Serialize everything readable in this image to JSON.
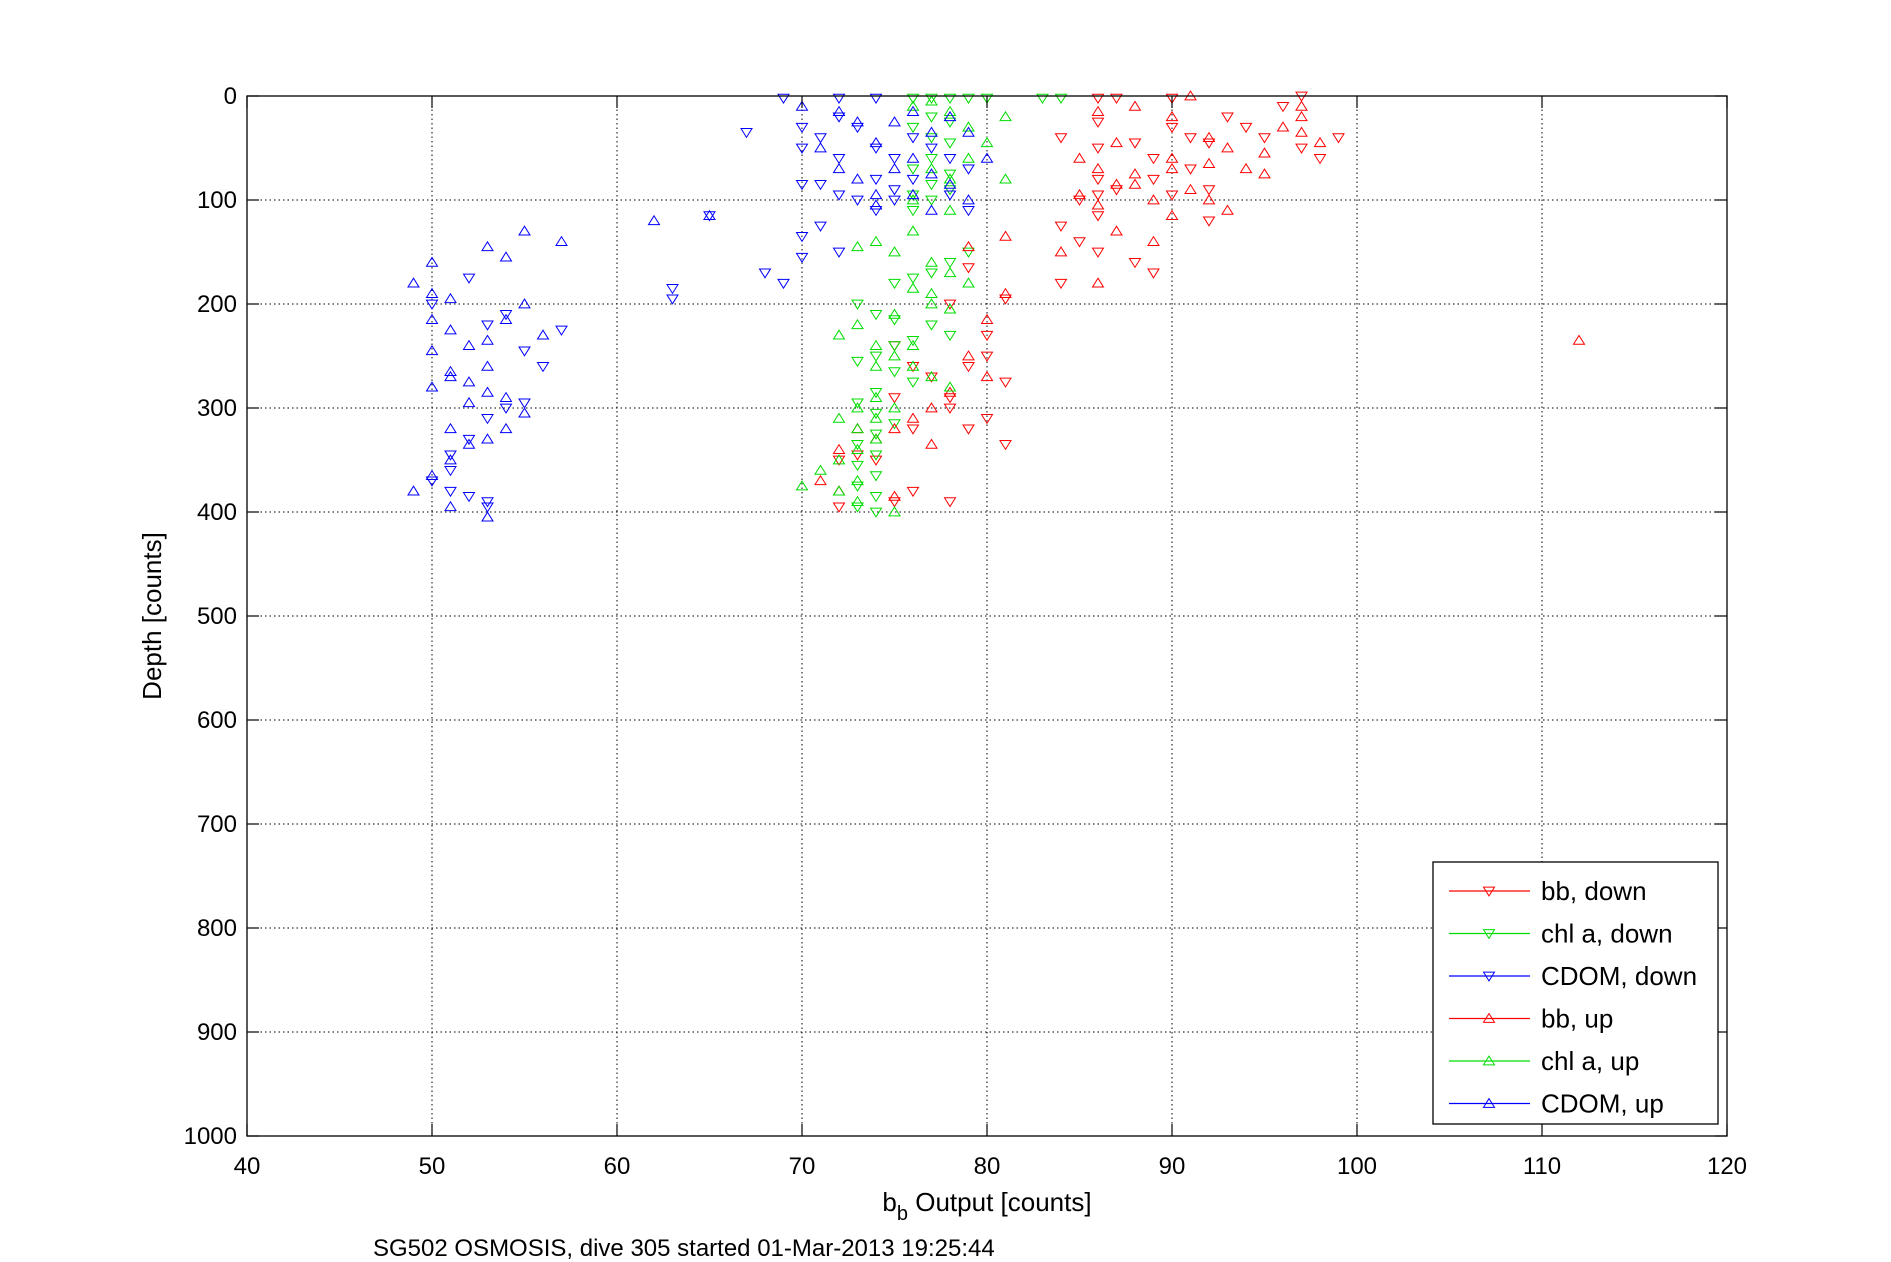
{
  "chart_data": {
    "type": "scatter",
    "title": "",
    "xlabel": {
      "main": "b",
      "sub": "b",
      "rest": " Output [counts]"
    },
    "ylabel": "Depth [counts]",
    "caption": "SG502 OSMOSIS, dive 305 started 01-Mar-2013 19:25:44",
    "xlim": [
      40,
      120
    ],
    "ylim": [
      0,
      1000
    ],
    "y_reversed": true,
    "grid": true,
    "legend_position": "bottom-right",
    "x_ticks": [
      "40",
      "50",
      "60",
      "70",
      "80",
      "90",
      "100",
      "110",
      "120"
    ],
    "y_ticks": [
      "0",
      "100",
      "200",
      "300",
      "400",
      "500",
      "600",
      "700",
      "800",
      "900",
      "1000"
    ],
    "series": [
      {
        "name": "bb, down",
        "color": "#ff0000",
        "marker": "triangle-down",
        "points": [
          [
            86,
            2
          ],
          [
            87,
            2
          ],
          [
            90,
            2
          ],
          [
            97,
            0
          ],
          [
            84,
            40
          ],
          [
            86,
            25
          ],
          [
            86,
            50
          ],
          [
            88,
            45
          ],
          [
            89,
            60
          ],
          [
            90,
            30
          ],
          [
            91,
            40
          ],
          [
            92,
            45
          ],
          [
            93,
            20
          ],
          [
            94,
            30
          ],
          [
            95,
            40
          ],
          [
            96,
            10
          ],
          [
            97,
            50
          ],
          [
            98,
            60
          ],
          [
            99,
            40
          ],
          [
            86,
            80
          ],
          [
            86,
            95
          ],
          [
            85,
            100
          ],
          [
            87,
            90
          ],
          [
            89,
            80
          ],
          [
            90,
            95
          ],
          [
            91,
            70
          ],
          [
            92,
            90
          ],
          [
            86,
            115
          ],
          [
            84,
            125
          ],
          [
            85,
            140
          ],
          [
            86,
            150
          ],
          [
            88,
            160
          ],
          [
            89,
            170
          ],
          [
            84,
            180
          ],
          [
            92,
            120
          ],
          [
            81,
            195
          ],
          [
            80,
            250
          ],
          [
            79,
            260
          ],
          [
            81,
            275
          ],
          [
            80,
            230
          ],
          [
            78,
            200
          ],
          [
            79,
            165
          ],
          [
            78,
            290
          ],
          [
            76,
            260
          ],
          [
            77,
            270
          ],
          [
            78,
            300
          ],
          [
            75,
            290
          ],
          [
            76,
            320
          ],
          [
            79,
            320
          ],
          [
            80,
            310
          ],
          [
            81,
            335
          ],
          [
            74,
            350
          ],
          [
            73,
            345
          ],
          [
            72,
            350
          ],
          [
            75,
            390
          ],
          [
            78,
            390
          ],
          [
            72,
            395
          ],
          [
            76,
            380
          ],
          [
            75,
            240
          ]
        ]
      },
      {
        "name": "chl a, down",
        "color": "#00dd00",
        "marker": "triangle-down",
        "points": [
          [
            76,
            2
          ],
          [
            77,
            2
          ],
          [
            78,
            2
          ],
          [
            79,
            2
          ],
          [
            80,
            2
          ],
          [
            83,
            2
          ],
          [
            84,
            2
          ],
          [
            77,
            20
          ],
          [
            78,
            25
          ],
          [
            76,
            30
          ],
          [
            77,
            40
          ],
          [
            78,
            45
          ],
          [
            77,
            60
          ],
          [
            76,
            70
          ],
          [
            78,
            75
          ],
          [
            77,
            85
          ],
          [
            76,
            95
          ],
          [
            78,
            90
          ],
          [
            77,
            100
          ],
          [
            76,
            110
          ],
          [
            79,
            150
          ],
          [
            78,
            160
          ],
          [
            77,
            170
          ],
          [
            76,
            175
          ],
          [
            75,
            180
          ],
          [
            73,
            200
          ],
          [
            74,
            210
          ],
          [
            75,
            215
          ],
          [
            77,
            220
          ],
          [
            78,
            230
          ],
          [
            76,
            235
          ],
          [
            75,
            240
          ],
          [
            74,
            250
          ],
          [
            73,
            255
          ],
          [
            75,
            265
          ],
          [
            76,
            275
          ],
          [
            74,
            285
          ],
          [
            73,
            295
          ],
          [
            74,
            305
          ],
          [
            75,
            315
          ],
          [
            74,
            325
          ],
          [
            73,
            335
          ],
          [
            74,
            345
          ],
          [
            73,
            355
          ],
          [
            74,
            365
          ],
          [
            73,
            375
          ],
          [
            74,
            385
          ],
          [
            73,
            395
          ],
          [
            74,
            400
          ]
        ]
      },
      {
        "name": "CDOM, down",
        "color": "#0000ff",
        "marker": "triangle-down",
        "points": [
          [
            69,
            2
          ],
          [
            70,
            30
          ],
          [
            70,
            50
          ],
          [
            71,
            40
          ],
          [
            72,
            2
          ],
          [
            72,
            20
          ],
          [
            73,
            30
          ],
          [
            74,
            2
          ],
          [
            74,
            50
          ],
          [
            75,
            60
          ],
          [
            76,
            40
          ],
          [
            77,
            50
          ],
          [
            78,
            60
          ],
          [
            79,
            70
          ],
          [
            70,
            85
          ],
          [
            72,
            95
          ],
          [
            73,
            100
          ],
          [
            74,
            110
          ],
          [
            75,
            90
          ],
          [
            76,
            80
          ],
          [
            78,
            95
          ],
          [
            79,
            110
          ],
          [
            70,
            135
          ],
          [
            71,
            125
          ],
          [
            72,
            150
          ],
          [
            70,
            155
          ],
          [
            68,
            170
          ],
          [
            69,
            180
          ],
          [
            65,
            115
          ],
          [
            63,
            185
          ],
          [
            63,
            195
          ],
          [
            50,
            200
          ],
          [
            52,
            175
          ],
          [
            53,
            220
          ],
          [
            54,
            210
          ],
          [
            55,
            245
          ],
          [
            56,
            260
          ],
          [
            57,
            225
          ],
          [
            50,
            370
          ],
          [
            51,
            345
          ],
          [
            52,
            330
          ],
          [
            53,
            310
          ],
          [
            54,
            300
          ],
          [
            55,
            295
          ],
          [
            51,
            360
          ],
          [
            52,
            385
          ],
          [
            53,
            390
          ],
          [
            53,
            395
          ],
          [
            51,
            380
          ],
          [
            67,
            35
          ],
          [
            71,
            85
          ],
          [
            72,
            60
          ],
          [
            74,
            80
          ],
          [
            75,
            100
          ]
        ]
      },
      {
        "name": "bb, up",
        "color": "#ff0000",
        "marker": "triangle-up",
        "points": [
          [
            86,
            15
          ],
          [
            88,
            10
          ],
          [
            90,
            20
          ],
          [
            91,
            0
          ],
          [
            92,
            40
          ],
          [
            93,
            50
          ],
          [
            94,
            70
          ],
          [
            95,
            75
          ],
          [
            95,
            55
          ],
          [
            96,
            30
          ],
          [
            97,
            20
          ],
          [
            97,
            35
          ],
          [
            88,
            75
          ],
          [
            90,
            70
          ],
          [
            91,
            90
          ],
          [
            92,
            100
          ],
          [
            93,
            110
          ],
          [
            86,
            70
          ],
          [
            87,
            85
          ],
          [
            89,
            100
          ],
          [
            90,
            115
          ],
          [
            85,
            95
          ],
          [
            87,
            130
          ],
          [
            89,
            140
          ],
          [
            86,
            180
          ],
          [
            84,
            150
          ],
          [
            81,
            135
          ],
          [
            79,
            145
          ],
          [
            80,
            215
          ],
          [
            81,
            190
          ],
          [
            79,
            250
          ],
          [
            80,
            270
          ],
          [
            78,
            285
          ],
          [
            77,
            300
          ],
          [
            76,
            310
          ],
          [
            75,
            320
          ],
          [
            77,
            335
          ],
          [
            74,
            330
          ],
          [
            73,
            320
          ],
          [
            72,
            340
          ],
          [
            71,
            370
          ],
          [
            72,
            380
          ],
          [
            75,
            385
          ],
          [
            112,
            235
          ],
          [
            97,
            10
          ],
          [
            98,
            45
          ],
          [
            92,
            65
          ],
          [
            90,
            60
          ],
          [
            88,
            85
          ],
          [
            86,
            105
          ],
          [
            87,
            45
          ],
          [
            85,
            60
          ]
        ]
      },
      {
        "name": "chl a, up",
        "color": "#00dd00",
        "marker": "triangle-up",
        "points": [
          [
            76,
            10
          ],
          [
            77,
            5
          ],
          [
            78,
            15
          ],
          [
            79,
            30
          ],
          [
            80,
            45
          ],
          [
            81,
            20
          ],
          [
            77,
            70
          ],
          [
            78,
            80
          ],
          [
            81,
            80
          ],
          [
            76,
            100
          ],
          [
            78,
            110
          ],
          [
            76,
            130
          ],
          [
            74,
            140
          ],
          [
            73,
            145
          ],
          [
            75,
            150
          ],
          [
            77,
            160
          ],
          [
            78,
            170
          ],
          [
            79,
            180
          ],
          [
            76,
            185
          ],
          [
            77,
            200
          ],
          [
            75,
            210
          ],
          [
            73,
            220
          ],
          [
            72,
            230
          ],
          [
            74,
            240
          ],
          [
            75,
            250
          ],
          [
            76,
            260
          ],
          [
            77,
            270
          ],
          [
            78,
            280
          ],
          [
            74,
            290
          ],
          [
            73,
            300
          ],
          [
            72,
            310
          ],
          [
            73,
            320
          ],
          [
            74,
            330
          ],
          [
            73,
            340
          ],
          [
            72,
            350
          ],
          [
            71,
            360
          ],
          [
            73,
            370
          ],
          [
            72,
            380
          ],
          [
            70,
            375
          ],
          [
            73,
            390
          ],
          [
            75,
            400
          ],
          [
            74,
            310
          ],
          [
            75,
            300
          ],
          [
            74,
            260
          ],
          [
            76,
            240
          ],
          [
            77,
            190
          ],
          [
            78,
            205
          ],
          [
            79,
            60
          ]
        ]
      },
      {
        "name": "CDOM, up",
        "color": "#0000ff",
        "marker": "triangle-up",
        "points": [
          [
            70,
            10
          ],
          [
            72,
            15
          ],
          [
            73,
            25
          ],
          [
            74,
            45
          ],
          [
            75,
            25
          ],
          [
            76,
            15
          ],
          [
            77,
            35
          ],
          [
            78,
            20
          ],
          [
            79,
            35
          ],
          [
            80,
            60
          ],
          [
            71,
            50
          ],
          [
            72,
            70
          ],
          [
            73,
            80
          ],
          [
            74,
            95
          ],
          [
            75,
            70
          ],
          [
            76,
            60
          ],
          [
            77,
            75
          ],
          [
            78,
            85
          ],
          [
            79,
            100
          ],
          [
            62,
            120
          ],
          [
            65,
            115
          ],
          [
            55,
            130
          ],
          [
            57,
            140
          ],
          [
            53,
            145
          ],
          [
            54,
            155
          ],
          [
            50,
            160
          ],
          [
            49,
            180
          ],
          [
            50,
            190
          ],
          [
            51,
            195
          ],
          [
            50,
            215
          ],
          [
            51,
            225
          ],
          [
            52,
            240
          ],
          [
            50,
            245
          ],
          [
            51,
            265
          ],
          [
            52,
            275
          ],
          [
            53,
            260
          ],
          [
            55,
            200
          ],
          [
            54,
            215
          ],
          [
            56,
            230
          ],
          [
            53,
            235
          ],
          [
            51,
            270
          ],
          [
            50,
            280
          ],
          [
            52,
            295
          ],
          [
            53,
            285
          ],
          [
            54,
            290
          ],
          [
            55,
            305
          ],
          [
            51,
            320
          ],
          [
            52,
            335
          ],
          [
            53,
            330
          ],
          [
            51,
            350
          ],
          [
            50,
            365
          ],
          [
            49,
            380
          ],
          [
            51,
            395
          ],
          [
            53,
            405
          ],
          [
            54,
            320
          ],
          [
            76,
            95
          ],
          [
            77,
            110
          ],
          [
            74,
            105
          ]
        ]
      }
    ]
  }
}
